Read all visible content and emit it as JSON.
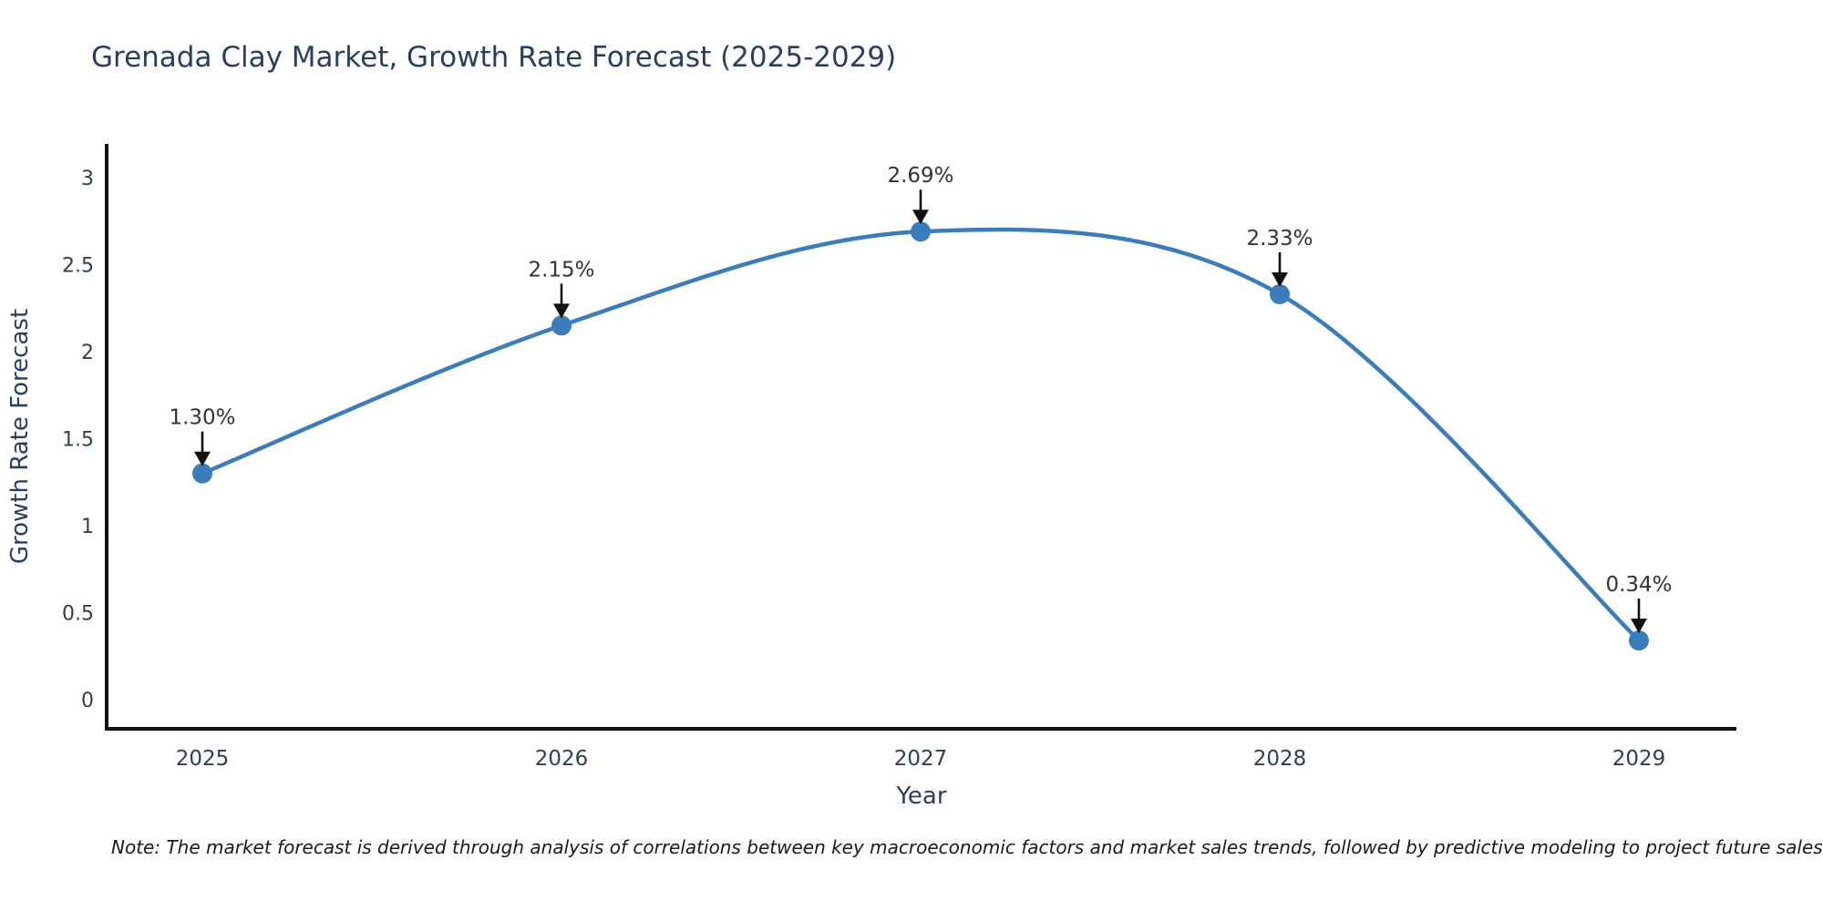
{
  "title": "Grenada Clay Market, Growth Rate Forecast (2025-2029)",
  "note": "Note: The market forecast is derived through analysis of correlations between key macroeconomic factors and market sales trends, followed by predictive modeling to project future sales",
  "colors": {
    "title": "#2a3f5f",
    "tick_label": "#2f3f56",
    "axis_line": "#111111",
    "annotation_text": "#333333",
    "annotation_arrow": "#111111",
    "note_text": "#1a1a1a",
    "line": "#3b7cba",
    "marker": "#3b7cba",
    "background": "#ffffff"
  },
  "chart_data": {
    "type": "line",
    "title": "Grenada Clay Market, Growth Rate Forecast (2025-2029)",
    "x": [
      2025,
      2026,
      2027,
      2028,
      2029
    ],
    "series": [
      {
        "name": "Growth Rate Forecast",
        "values": [
          1.3,
          2.15,
          2.69,
          2.33,
          0.34
        ]
      }
    ],
    "point_labels": [
      "1.30%",
      "2.15%",
      "2.69%",
      "2.33%",
      "0.34%"
    ],
    "xlabel": "Year",
    "ylabel": "Growth Rate Forecast",
    "yticks": [
      0,
      0.5,
      1,
      1.5,
      2,
      2.5,
      3
    ],
    "ylim": [
      -0.17,
      3.19
    ],
    "grid": false,
    "legend": "none",
    "smooth": true
  }
}
